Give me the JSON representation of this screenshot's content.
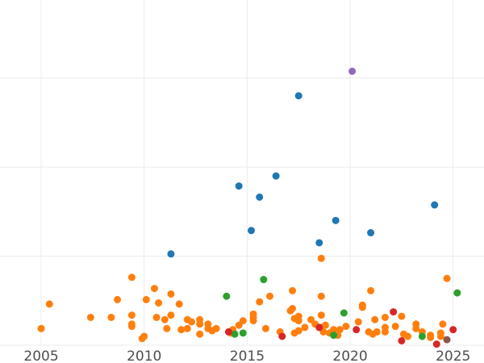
{
  "chart_data": {
    "type": "scatter",
    "title": "",
    "xlabel": "",
    "ylabel": "",
    "xlim": [
      2003,
      2026.5
    ],
    "ylim": [
      0,
      15.5
    ],
    "xticks": [
      2005,
      2010,
      2015,
      2020,
      2025
    ],
    "xtick_labels": [
      "2005",
      "2010",
      "2015",
      "2020",
      "2025"
    ],
    "ygrid": [
      0,
      4,
      8,
      12
    ],
    "grid": true,
    "legend": "none",
    "series": [
      {
        "color": "#ff7f0e",
        "points": [
          {
            "x": 2005.0,
            "y": 0.75
          },
          {
            "x": 2005.4,
            "y": 1.85
          },
          {
            "x": 2007.4,
            "y": 1.25
          },
          {
            "x": 2008.4,
            "y": 1.25
          },
          {
            "x": 2008.7,
            "y": 2.05
          },
          {
            "x": 2009.4,
            "y": 3.05
          },
          {
            "x": 2009.4,
            "y": 1.35
          },
          {
            "x": 2009.4,
            "y": 0.95
          },
          {
            "x": 2009.4,
            "y": 0.85
          },
          {
            "x": 2009.9,
            "y": 0.3
          },
          {
            "x": 2010.0,
            "y": 0.4
          },
          {
            "x": 2010.1,
            "y": 2.05
          },
          {
            "x": 2010.5,
            "y": 2.55
          },
          {
            "x": 2010.6,
            "y": 1.25
          },
          {
            "x": 2010.7,
            "y": 1.9
          },
          {
            "x": 2011.0,
            "y": 1.15
          },
          {
            "x": 2011.1,
            "y": 0.75
          },
          {
            "x": 2011.3,
            "y": 1.35
          },
          {
            "x": 2011.3,
            "y": 2.3
          },
          {
            "x": 2011.7,
            "y": 1.85
          },
          {
            "x": 2011.8,
            "y": 0.7
          },
          {
            "x": 2012.1,
            "y": 0.75
          },
          {
            "x": 2012.1,
            "y": 1.15
          },
          {
            "x": 2012.3,
            "y": 1.05
          },
          {
            "x": 2012.7,
            "y": 1.15
          },
          {
            "x": 2012.7,
            "y": 0.95
          },
          {
            "x": 2012.7,
            "y": 0.5
          },
          {
            "x": 2013.1,
            "y": 0.95
          },
          {
            "x": 2013.1,
            "y": 0.75
          },
          {
            "x": 2013.3,
            "y": 0.65
          },
          {
            "x": 2013.5,
            "y": 0.75
          },
          {
            "x": 2014.2,
            "y": 0.55
          },
          {
            "x": 2014.3,
            "y": 0.7
          },
          {
            "x": 2014.6,
            "y": 0.9
          },
          {
            "x": 2014.8,
            "y": 1.1
          },
          {
            "x": 2015.3,
            "y": 1.1
          },
          {
            "x": 2015.3,
            "y": 1.25
          },
          {
            "x": 2015.3,
            "y": 1.4
          },
          {
            "x": 2015.6,
            "y": 1.95
          },
          {
            "x": 2015.9,
            "y": 0.75
          },
          {
            "x": 2016.1,
            "y": 2.2
          },
          {
            "x": 2016.6,
            "y": 0.6
          },
          {
            "x": 2017.1,
            "y": 1.55
          },
          {
            "x": 2017.2,
            "y": 1.65
          },
          {
            "x": 2017.2,
            "y": 2.45
          },
          {
            "x": 2017.3,
            "y": 0.55
          },
          {
            "x": 2017.3,
            "y": 1.2
          },
          {
            "x": 2017.5,
            "y": 1.3
          },
          {
            "x": 2017.5,
            "y": 1.1
          },
          {
            "x": 2017.5,
            "y": 0.65
          },
          {
            "x": 2017.8,
            "y": 0.8
          },
          {
            "x": 2018.1,
            "y": 1.15
          },
          {
            "x": 2018.3,
            "y": 0.95
          },
          {
            "x": 2018.6,
            "y": 0.8
          },
          {
            "x": 2018.6,
            "y": 1.35
          },
          {
            "x": 2018.6,
            "y": 2.2
          },
          {
            "x": 2018.6,
            "y": 3.9
          },
          {
            "x": 2018.7,
            "y": 0.6
          },
          {
            "x": 2018.8,
            "y": 0.9
          },
          {
            "x": 2019.0,
            "y": 0.55
          },
          {
            "x": 2019.2,
            "y": 0.7
          },
          {
            "x": 2019.4,
            "y": 0.45
          },
          {
            "x": 2019.5,
            "y": 0.7
          },
          {
            "x": 2019.8,
            "y": 0.85
          },
          {
            "x": 2020.4,
            "y": 1.05
          },
          {
            "x": 2020.6,
            "y": 1.7
          },
          {
            "x": 2020.6,
            "y": 1.8
          },
          {
            "x": 2020.9,
            "y": 0.6
          },
          {
            "x": 2021.0,
            "y": 2.45
          },
          {
            "x": 2021.1,
            "y": 0.5
          },
          {
            "x": 2021.2,
            "y": 1.15
          },
          {
            "x": 2021.3,
            "y": 0.6
          },
          {
            "x": 2021.7,
            "y": 0.6
          },
          {
            "x": 2021.7,
            "y": 0.8
          },
          {
            "x": 2021.7,
            "y": 1.25
          },
          {
            "x": 2022.2,
            "y": 0.85
          },
          {
            "x": 2022.5,
            "y": 1.3
          },
          {
            "x": 2022.6,
            "y": 0.5
          },
          {
            "x": 2022.8,
            "y": 0.4
          },
          {
            "x": 2023.2,
            "y": 0.95
          },
          {
            "x": 2023.2,
            "y": 0.75
          },
          {
            "x": 2023.5,
            "y": 0.6
          },
          {
            "x": 2023.9,
            "y": 0.45
          },
          {
            "x": 2023.9,
            "y": 0.35
          },
          {
            "x": 2024.4,
            "y": 0.55
          },
          {
            "x": 2024.4,
            "y": 0.4
          },
          {
            "x": 2024.5,
            "y": 0.95
          },
          {
            "x": 2024.7,
            "y": 3.0
          }
        ]
      },
      {
        "color": "#1f77b4",
        "points": [
          {
            "x": 2011.3,
            "y": 4.1
          },
          {
            "x": 2014.6,
            "y": 7.15
          },
          {
            "x": 2015.2,
            "y": 5.15
          },
          {
            "x": 2015.6,
            "y": 6.65
          },
          {
            "x": 2016.4,
            "y": 7.6
          },
          {
            "x": 2017.5,
            "y": 11.2
          },
          {
            "x": 2018.5,
            "y": 4.6
          },
          {
            "x": 2019.3,
            "y": 5.6
          },
          {
            "x": 2021.0,
            "y": 5.05
          },
          {
            "x": 2024.1,
            "y": 6.3
          }
        ]
      },
      {
        "color": "#2ca02c",
        "points": [
          {
            "x": 2014.0,
            "y": 2.2
          },
          {
            "x": 2014.4,
            "y": 0.5
          },
          {
            "x": 2014.8,
            "y": 0.55
          },
          {
            "x": 2015.8,
            "y": 2.95
          },
          {
            "x": 2019.2,
            "y": 0.45
          },
          {
            "x": 2019.7,
            "y": 1.45
          },
          {
            "x": 2023.5,
            "y": 0.4
          },
          {
            "x": 2025.2,
            "y": 2.35
          }
        ]
      },
      {
        "color": "#d62728",
        "points": [
          {
            "x": 2014.1,
            "y": 0.6
          },
          {
            "x": 2016.7,
            "y": 0.4
          },
          {
            "x": 2018.5,
            "y": 0.8
          },
          {
            "x": 2020.3,
            "y": 0.7
          },
          {
            "x": 2022.1,
            "y": 1.5
          },
          {
            "x": 2022.5,
            "y": 0.2
          },
          {
            "x": 2024.2,
            "y": 0.05
          },
          {
            "x": 2025.0,
            "y": 0.7
          }
        ]
      },
      {
        "color": "#9467bd",
        "points": [
          {
            "x": 2020.1,
            "y": 12.3
          }
        ]
      },
      {
        "color": "#8c564b",
        "points": [
          {
            "x": 2024.7,
            "y": 0.25
          }
        ]
      }
    ]
  }
}
